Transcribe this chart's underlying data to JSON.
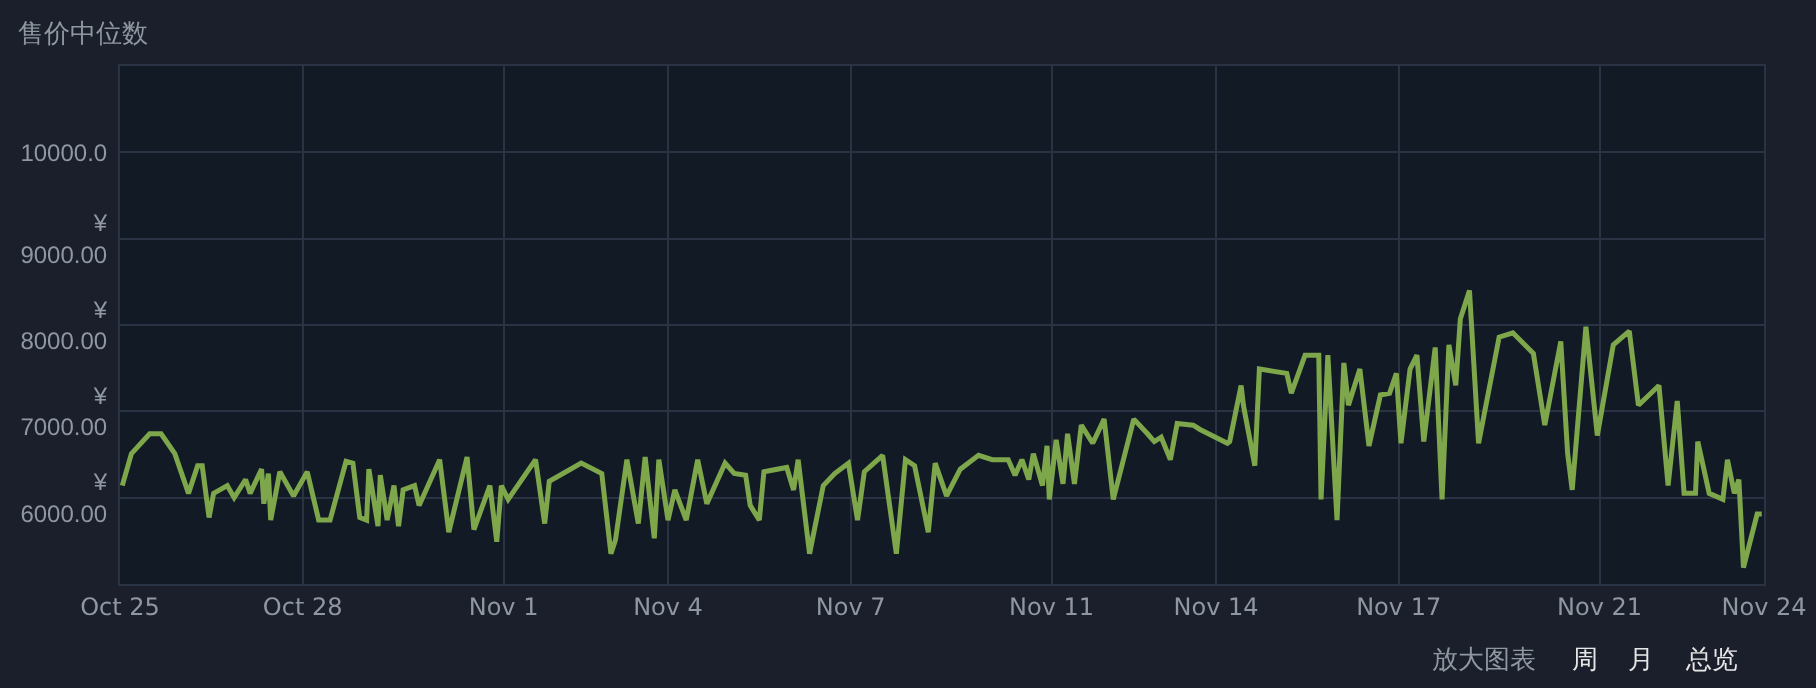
{
  "chart_data": {
    "type": "line",
    "title": "售价中位数",
    "x": [
      "--10-25T01:00",
      "--10-25T05:00",
      "--10-25T13:00",
      "--10-25T18:00",
      "--10-26T00:00",
      "--10-26T06:00",
      "--10-26T10:00",
      "--10-26T12:00",
      "--10-26T15:00",
      "--10-26T17:00",
      "--10-26T23:00",
      "--10-27T02:00",
      "--10-27T07:00",
      "--10-27T09:00",
      "--10-27T14:00",
      "--10-27T15:00",
      "--10-27T17:00",
      "--10-27T18:00",
      "--10-27T22:00",
      "--10-28T04:00",
      "--10-28T10:00",
      "--10-28T15:00",
      "--10-28T20:00",
      "--10-29T03:00",
      "--10-29T06:00",
      "--10-29T09:00",
      "--10-29T12:00",
      "--10-29T13:00",
      "--10-29T17:00",
      "--10-29T18:00",
      "--10-29T21:00",
      "--10-30T00:00",
      "--10-30T02:00",
      "--10-30T04:00",
      "--10-30T09:00",
      "--10-30T11:00",
      "--10-30T20:00",
      "--10-31T00:00",
      "--10-31T08:00",
      "--10-31T11:00",
      "--10-31T18:00",
      "--10-31T21:00",
      "--10-31T23:00",
      "--11-01T02:00",
      "--11-01T14:00",
      "--11-01T18:00",
      "--11-01T20:00",
      "--11-02T10:00",
      "--11-02T19:00",
      "--11-02T23:00",
      "--11-03T01:00",
      "--11-03T06:00",
      "--11-03T11:00",
      "--11-03T14:00",
      "--11-03T18:00",
      "--11-03T20:00",
      "--11-04T00:00",
      "--11-04T03:00",
      "--11-04T08:00",
      "--11-04T13:00",
      "--11-04T17:00",
      "--11-05T01:00",
      "--11-05T05:00",
      "--11-05T10:00",
      "--11-05T12:00",
      "--11-05T16:00",
      "--11-05T18:00",
      "--11-06T04:00",
      "--11-06T07:00",
      "--11-06T09:00",
      "--11-06T14:00",
      "--11-06T20:00",
      "--11-07T01:00",
      "--11-07T07:00",
      "--11-07T11:00",
      "--11-07T14:00",
      "--11-07T22:00",
      "--11-08T04:00",
      "--11-08T08:00",
      "--11-08T12:00",
      "--11-08T18:00",
      "--11-08T21:00",
      "--11-09T02:00",
      "--11-09T08:00",
      "--11-09T16:00",
      "--11-09T22:00",
      "--11-10T05:00",
      "--11-10T08:00",
      "--11-10T11:00",
      "--11-10T14:00",
      "--11-10T16:00",
      "--11-10T20:00",
      "--11-10T22:00",
      "--11-10T23:00",
      "--11-11T02:00",
      "--11-11T05:00",
      "--11-11T07:00",
      "--11-11T10:00",
      "--11-11T13:00",
      "--11-11T18:00",
      "--11-11T23:00",
      "--11-12T03:00",
      "--11-12T12:00",
      "--11-12T18:00",
      "--11-12T21:00",
      "--11-13T00:00",
      "--11-13T04:00",
      "--11-13T07:00",
      "--11-13T14:00",
      "--11-13T17:00",
      "--11-14T05:00",
      "--11-14T06:00",
      "--11-14T11:00",
      "--11-14T12:00",
      "--11-14T17:00",
      "--11-14T19:00",
      "--11-15T07:00",
      "--11-15T09:00",
      "--11-15T15:00",
      "--11-15T21:00",
      "--11-15T22:00",
      "--11-16T01:00",
      "--11-16T05:00",
      "--11-16T08:00",
      "--11-16T10:00",
      "--11-16T15:00",
      "--11-16T19:00",
      "--11-17T00:00",
      "--11-17T04:00",
      "--11-17T07:00",
      "--11-17T09:00",
      "--11-17T13:00",
      "--11-17T16:00",
      "--11-17T19:00",
      "--11-18T00:00",
      "--11-18T03:00",
      "--11-18T06:00",
      "--11-18T09:00",
      "--11-18T11:00",
      "--11-18T15:00",
      "--11-18T19:00",
      "--11-19T04:00",
      "--11-19T10:00",
      "--11-19T19:00",
      "--11-20T00:00",
      "--11-20T07:00",
      "--11-20T10:00",
      "--11-20T12:00",
      "--11-20T18:00",
      "--11-20T23:00",
      "--11-21T06:00",
      "--11-21T13:00",
      "--11-21T17:00",
      "--11-22T02:00",
      "--11-22T06:00",
      "--11-22T10:00",
      "--11-22T13:00",
      "--11-22T18:00",
      "--11-22T19:00",
      "--11-23T00:00",
      "--11-23T06:00",
      "--11-23T08:00",
      "--11-23T11:00",
      "--11-23T13:00",
      "--11-23T15:00",
      "--11-23T21:00",
      "--11-23T23:00"
    ],
    "series": [
      {
        "color": "#7ea64b",
        "values": [
          6140,
          6510,
          6740,
          6740,
          6510,
          6050,
          6370,
          6370,
          5770,
          6050,
          6140,
          6000,
          6210,
          6050,
          6330,
          5930,
          6280,
          5740,
          6300,
          6020,
          6300,
          5740,
          5740,
          6420,
          6400,
          5770,
          5740,
          6330,
          5670,
          6260,
          5740,
          6140,
          5670,
          6090,
          6140,
          5910,
          6440,
          5600,
          6470,
          5630,
          6140,
          5490,
          6140,
          5980,
          6440,
          5700,
          6190,
          6400,
          6280,
          5350,
          5510,
          6440,
          5700,
          6470,
          5530,
          6440,
          5740,
          6090,
          5740,
          6440,
          5930,
          6400,
          6280,
          6260,
          5910,
          5740,
          6300,
          6350,
          6090,
          6440,
          5350,
          6140,
          6280,
          6400,
          5740,
          6300,
          6490,
          5350,
          6440,
          6370,
          5600,
          6400,
          6020,
          6330,
          6490,
          6440,
          6440,
          6260,
          6440,
          6210,
          6510,
          6140,
          6600,
          5980,
          6670,
          6160,
          6740,
          6160,
          6840,
          6630,
          6910,
          5980,
          6910,
          6740,
          6650,
          6700,
          6440,
          6860,
          6840,
          6790,
          6630,
          6650,
          7300,
          7070,
          6370,
          7490,
          7440,
          7210,
          7650,
          7650,
          5980,
          7650,
          5740,
          7560,
          7070,
          7490,
          6600,
          7190,
          7210,
          7440,
          6630,
          7490,
          7650,
          6650,
          7740,
          5980,
          7770,
          7300,
          8070,
          8400,
          6630,
          7860,
          7910,
          7670,
          6840,
          7810,
          6510,
          6090,
          7980,
          6720,
          7770,
          7930,
          7070,
          7300,
          6140,
          7120,
          6050,
          6050,
          6650,
          6050,
          5980,
          6440,
          6050,
          6210,
          5190,
          5810,
          5810
        ]
      }
    ],
    "xlim": [
      "--10-25T00:00",
      "--11-24T00:00"
    ],
    "xticks": [
      {
        "value": "--10-25T00:00",
        "label": "Oct 25"
      },
      {
        "value": "--10-28T08:00",
        "label": "Oct 28"
      },
      {
        "value": "--11-01T00:00",
        "label": "Nov 1"
      },
      {
        "value": "--11-04T00:00",
        "label": "Nov 4"
      },
      {
        "value": "--11-07T08:00",
        "label": "Nov 7"
      },
      {
        "value": "--11-11T00:00",
        "label": "Nov 11"
      },
      {
        "value": "--11-14T00:00",
        "label": "Nov 14"
      },
      {
        "value": "--11-17T08:00",
        "label": "Nov 17"
      },
      {
        "value": "--11-21T00:00",
        "label": "Nov 21"
      },
      {
        "value": "--11-24T00:00",
        "label": "Nov 24"
      }
    ],
    "ylim": [
      5000,
      11000
    ],
    "yticks": [
      {
        "value": 6000,
        "label": "¥ 6000.00"
      },
      {
        "value": 7000,
        "label": "¥ 7000.00"
      },
      {
        "value": 8000,
        "label": "¥ 8000.00"
      },
      {
        "value": 9000,
        "label": "¥ 9000.00"
      },
      {
        "value": 10000,
        "label": "10000.0"
      }
    ],
    "grid": true,
    "marker": "none",
    "line_style": "solid",
    "annotations": [
      "放大图表",
      "周",
      "月",
      "总览"
    ]
  }
}
